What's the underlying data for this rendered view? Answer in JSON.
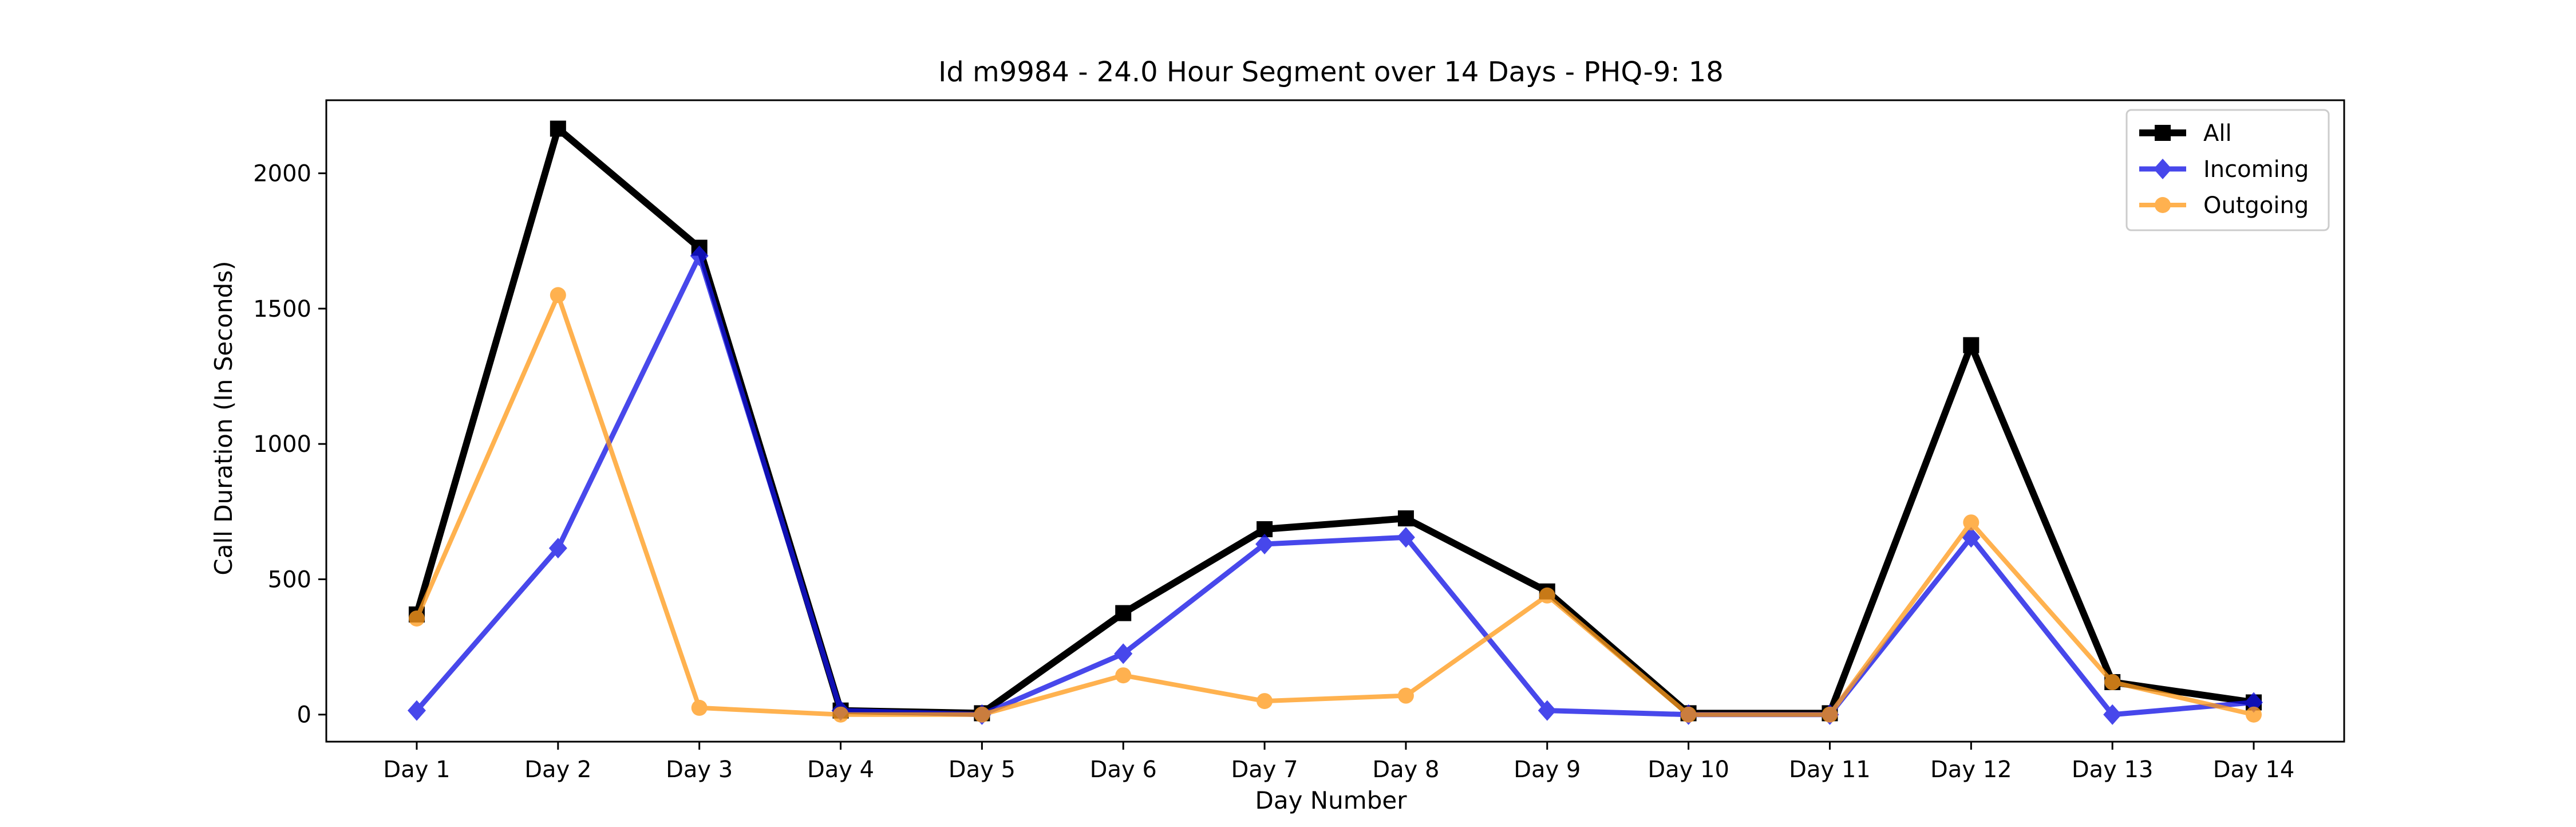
{
  "chart_data": {
    "type": "line",
    "title": "Id m9984 - 24.0 Hour Segment over 14 Days - PHQ-9: 18",
    "xlabel": "Day Number",
    "ylabel": "Call Duration (In Seconds)",
    "categories": [
      "Day 1",
      "Day 2",
      "Day 3",
      "Day 4",
      "Day 5",
      "Day 6",
      "Day 7",
      "Day 8",
      "Day 9",
      "Day 10",
      "Day 11",
      "Day 12",
      "Day 13",
      "Day 14"
    ],
    "ylim": [
      -100,
      2270
    ],
    "yticks": [
      0,
      500,
      1000,
      1500,
      2000
    ],
    "grid": false,
    "legend": "top-right",
    "series": [
      {
        "name": "All",
        "color": "#000000",
        "marker": "square",
        "values": [
          370,
          2165,
          1725,
          15,
          5,
          375,
          685,
          725,
          455,
          5,
          5,
          1365,
          120,
          45
        ]
      },
      {
        "name": "Incoming",
        "color": "#1414e6",
        "marker": "diamond",
        "values": [
          15,
          615,
          1695,
          15,
          0,
          225,
          630,
          655,
          15,
          0,
          0,
          655,
          0,
          45
        ]
      },
      {
        "name": "Outgoing",
        "color": "#ff9c1e",
        "marker": "circle",
        "values": [
          355,
          1550,
          25,
          0,
          0,
          145,
          50,
          70,
          440,
          0,
          0,
          710,
          120,
          0
        ]
      }
    ]
  }
}
